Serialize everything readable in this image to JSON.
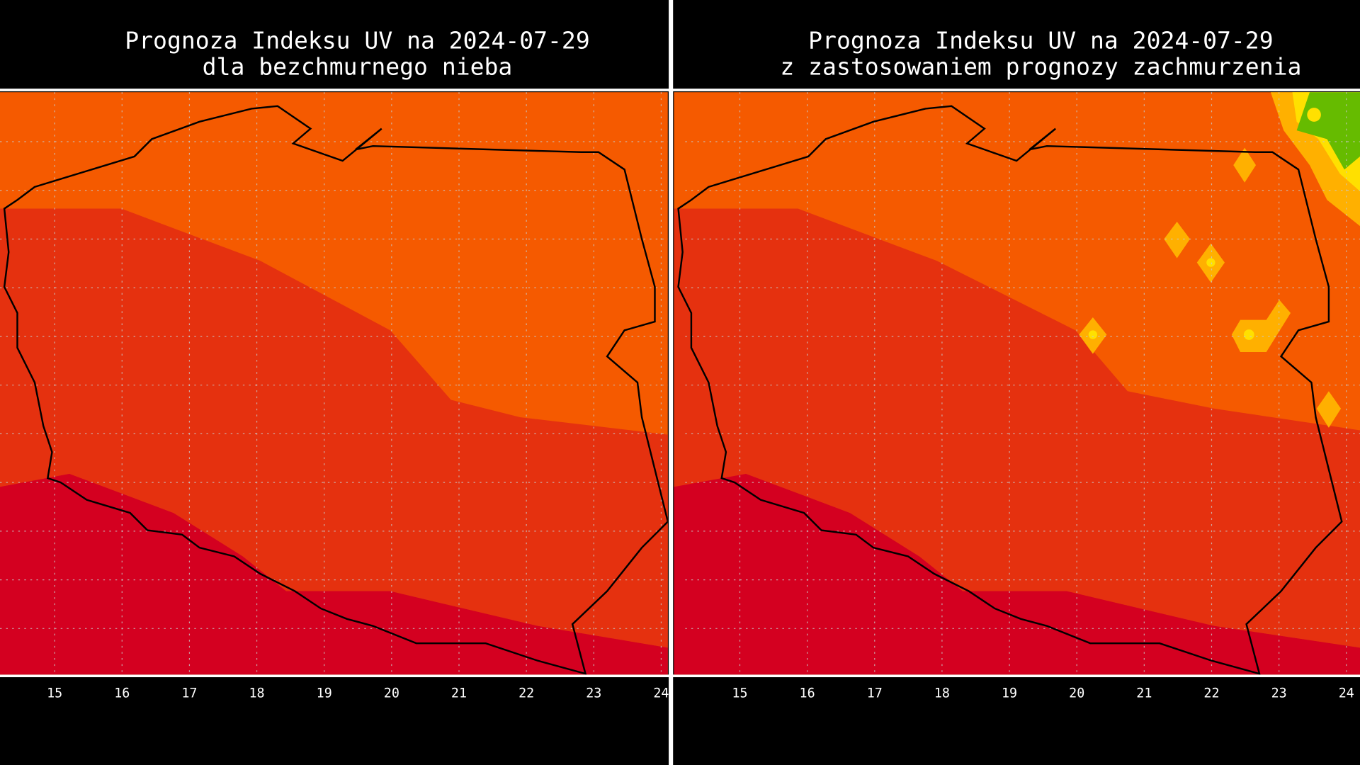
{
  "panels": [
    {
      "title": [
        "Prognoza Indeksu UV na 2024-07-29",
        "dla bezchmurnego nieba"
      ],
      "lon_labels": [
        "15",
        "16",
        "17",
        "18",
        "19",
        "20",
        "21",
        "22",
        "23",
        "24"
      ]
    },
    {
      "title": [
        "Prognoza Indeksu UV na 2024-07-29",
        "z zastosowaniem prognozy zachmurzenia"
      ],
      "lon_labels": [
        "15",
        "16",
        "17",
        "18",
        "19",
        "20",
        "21",
        "22",
        "23",
        "24"
      ]
    }
  ]
}
